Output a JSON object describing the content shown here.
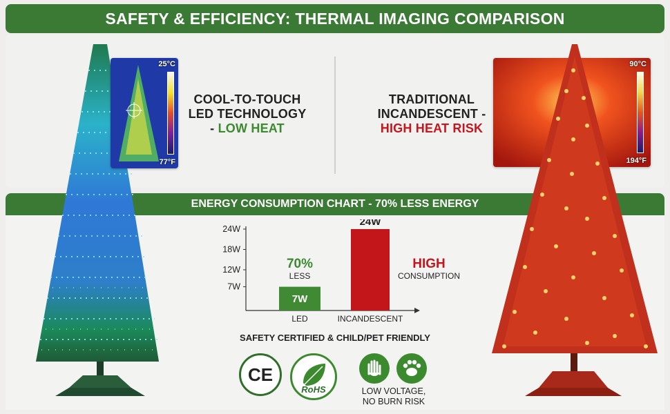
{
  "header": {
    "title": "SAFETY & EFFICIENCY: THERMAL IMAGING COMPARISON"
  },
  "led": {
    "caption_line1": "COOL-TO-TOUCH",
    "caption_line2": "LED TECHNOLOGY",
    "caption_line3_prefix": "- ",
    "caption_line3_highlight": "LOW HEAT",
    "thermal_top": "25°C",
    "thermal_bottom": "77°F"
  },
  "incandescent": {
    "caption_line1": "TRADITIONAL",
    "caption_line2": "INCANDESCENT -",
    "caption_line3_highlight": "HIGH HEAT RISK",
    "thermal_top": "90°C",
    "thermal_bottom": "194°F"
  },
  "chart_banner": "ENERGY CONSUMPTION CHART - 70% LESS ENERGY",
  "chart_data": {
    "type": "bar",
    "categories": [
      "LED",
      "INCANDESCENT"
    ],
    "values": [
      7,
      24
    ],
    "value_labels": [
      "7W",
      "24W"
    ],
    "y_ticks": [
      "24W",
      "18W",
      "12W",
      "7W"
    ],
    "y_tick_values": [
      24,
      18,
      12,
      7
    ],
    "ylim": [
      0,
      24
    ],
    "bar_colors": [
      "#3f8a33",
      "#c3161b"
    ],
    "annotations": {
      "led_big": "70%",
      "led_small": "LESS",
      "inc_big": "HIGH",
      "inc_small": "CONSUMPTION"
    }
  },
  "safety": {
    "title": "SAFETY CERTIFIED & CHILD/PET FRIENDLY",
    "ce_label": "CE",
    "rohs_label": "RoHS",
    "low_voltage_line1": "LOW VOLTAGE,",
    "low_voltage_line2": "NO BURN RISK"
  },
  "colors": {
    "brand_green": "#3b7a35",
    "highlight_green": "#3b8a2e",
    "warning_red": "#c4161c"
  }
}
